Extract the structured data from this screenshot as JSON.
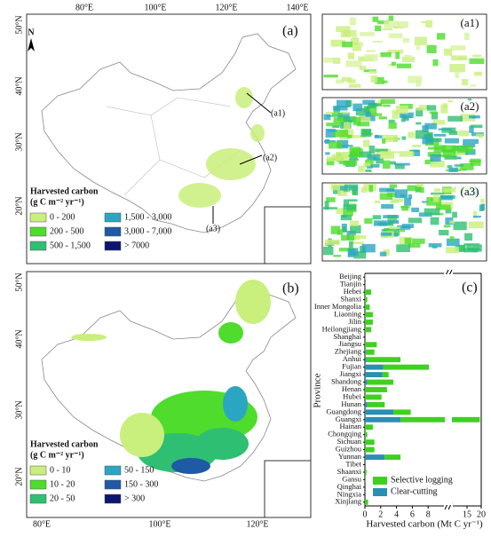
{
  "map_a": {
    "panel": "(a)",
    "north": "N",
    "lon_labels": [
      "80°E",
      "100°E",
      "120°E",
      "140°E"
    ],
    "lat_labels": [
      "50°N",
      "40°N",
      "30°N",
      "20°N"
    ],
    "callouts": [
      "(a1)",
      "(a2)",
      "(a3)"
    ],
    "legend": {
      "title": "Harvested carbon",
      "unit": "(g C m⁻² yr⁻¹)",
      "classes": [
        {
          "label": "0 - 200",
          "color": "#c9ef7c"
        },
        {
          "label": "1,500 - 3,000",
          "color": "#2ba6c2"
        },
        {
          "label": "200 - 500",
          "color": "#4fdc2c"
        },
        {
          "label": "3,000 - 7,000",
          "color": "#1f5aa6"
        },
        {
          "label": "500 - 1,500",
          "color": "#2fbf72"
        },
        {
          "label": "> 7000",
          "color": "#0b1670"
        }
      ]
    }
  },
  "map_b": {
    "panel": "(b)",
    "lon_labels": [
      "80°E",
      "100°E",
      "120°E"
    ],
    "lat_labels": [
      "50°N",
      "40°N",
      "30°N",
      "20°N"
    ],
    "legend": {
      "title": "Harvested carbon",
      "unit": "(g C m⁻² yr⁻¹)",
      "classes": [
        {
          "label": "0 - 10",
          "color": "#c9ef7c"
        },
        {
          "label": "50 - 150",
          "color": "#2ba6c2"
        },
        {
          "label": "10 - 20",
          "color": "#4fdc2c"
        },
        {
          "label": "150 - 300",
          "color": "#1f5aa6"
        },
        {
          "label": "20 - 50",
          "color": "#2fbf72"
        },
        {
          "label": "> 300",
          "color": "#0b1670"
        }
      ]
    }
  },
  "insets": [
    "(a1)",
    "(a2)",
    "(a3)"
  ],
  "chart_data": {
    "type": "bar",
    "orientation": "horizontal",
    "stacked": true,
    "panel": "(c)",
    "categories": [
      "Beijing",
      "Tianjin",
      "Hebei",
      "Shanxi",
      "Inner Mongolia",
      "Liaoning",
      "Jilin",
      "Heilongjiang",
      "Shanghai",
      "Jiangsu",
      "Zhejiang",
      "Anhui",
      "Fujian",
      "Jiangxi",
      "Shandong",
      "Henan",
      "Hubei",
      "Hunan",
      "Guangdong",
      "Guangxi",
      "Hainan",
      "Chongqing",
      "Sichuan",
      "Guizhou",
      "Yunnan",
      "Tibet",
      "Shaanxi",
      "Gansu",
      "Qinghai",
      "Ningxia",
      "Xinjiang"
    ],
    "series": [
      {
        "name": "Selective logging",
        "color": "#3fd11f",
        "values": [
          0.05,
          0.02,
          0.8,
          0.3,
          0.6,
          1.0,
          1.0,
          0.8,
          0,
          1.5,
          1.1,
          4.3,
          5.8,
          0.8,
          3.3,
          2.8,
          2.1,
          2.2,
          2.2,
          15,
          1.0,
          0.3,
          1.2,
          1.2,
          2.0,
          0,
          0.2,
          0.1,
          0,
          0,
          0.4
        ]
      },
      {
        "name": "Clear-cutting",
        "color": "#2b8fb3",
        "values": [
          0,
          0,
          0,
          0,
          0,
          0,
          0,
          0,
          0,
          0,
          0.1,
          0.2,
          2.3,
          2.2,
          0.3,
          0,
          0,
          0.3,
          3.6,
          4.5,
          0,
          0,
          0,
          0,
          2.5,
          0,
          0,
          0,
          0,
          0,
          0
        ]
      }
    ],
    "xlabel": "Harvested carbon (Mt C yr⁻¹)",
    "ylabel": "Province",
    "xlim": [
      0,
      20
    ],
    "axis_break": 10,
    "xticks": [
      0,
      2,
      4,
      6,
      8,
      15,
      20
    ]
  }
}
